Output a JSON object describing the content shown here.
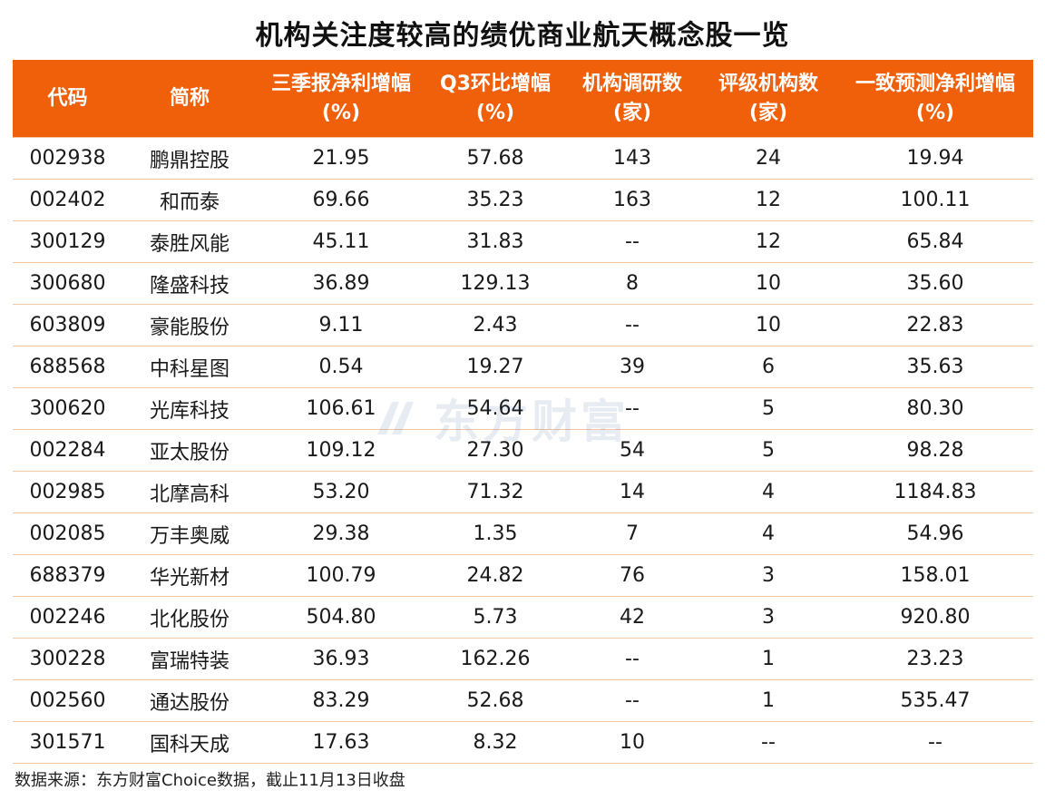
{
  "title": "机构关注度较高的绩优商业航天概念股一览",
  "columns": [
    {
      "line1": "代码",
      "line2": ""
    },
    {
      "line1": "简称",
      "line2": ""
    },
    {
      "line1": "三季报净利增幅",
      "line2": "(%)"
    },
    {
      "line1": "Q3环比增幅",
      "line2": "(%)"
    },
    {
      "line1": "机构调研数",
      "line2": "(家)"
    },
    {
      "line1": "评级机构数",
      "line2": "(家)"
    },
    {
      "line1": "一致预测净利增幅",
      "line2": "(%)"
    }
  ],
  "rows": [
    [
      "002938",
      "鹏鼎控股",
      "21.95",
      "57.68",
      "143",
      "24",
      "19.94"
    ],
    [
      "002402",
      "和而泰",
      "69.66",
      "35.23",
      "163",
      "12",
      "100.11"
    ],
    [
      "300129",
      "泰胜风能",
      "45.11",
      "31.83",
      "--",
      "12",
      "65.84"
    ],
    [
      "300680",
      "隆盛科技",
      "36.89",
      "129.13",
      "8",
      "10",
      "35.60"
    ],
    [
      "603809",
      "豪能股份",
      "9.11",
      "2.43",
      "--",
      "10",
      "22.83"
    ],
    [
      "688568",
      "中科星图",
      "0.54",
      "19.27",
      "39",
      "6",
      "35.63"
    ],
    [
      "300620",
      "光库科技",
      "106.61",
      "54.64",
      "--",
      "5",
      "80.30"
    ],
    [
      "002284",
      "亚太股份",
      "109.12",
      "27.30",
      "54",
      "5",
      "98.28"
    ],
    [
      "002985",
      "北摩高科",
      "53.20",
      "71.32",
      "14",
      "4",
      "1184.83"
    ],
    [
      "002085",
      "万丰奥威",
      "29.38",
      "1.35",
      "7",
      "4",
      "54.96"
    ],
    [
      "688379",
      "华光新材",
      "100.79",
      "24.82",
      "76",
      "3",
      "158.01"
    ],
    [
      "002246",
      "北化股份",
      "504.80",
      "5.73",
      "42",
      "3",
      "920.80"
    ],
    [
      "300228",
      "富瑞特装",
      "36.93",
      "162.26",
      "--",
      "1",
      "23.23"
    ],
    [
      "002560",
      "通达股份",
      "83.29",
      "52.68",
      "--",
      "1",
      "535.47"
    ],
    [
      "301571",
      "国科天成",
      "17.63",
      "8.32",
      "10",
      "--",
      "--"
    ]
  ],
  "source": "数据来源：东方财富Choice数据，截止11月13日收盘",
  "watermark": {
    "text": "东方财富",
    "icon": "eastmoney-logo-icon"
  },
  "colors": {
    "header_bg": "#f0600a",
    "header_text": "#ffffff",
    "row_border": "#f3c6a6"
  }
}
